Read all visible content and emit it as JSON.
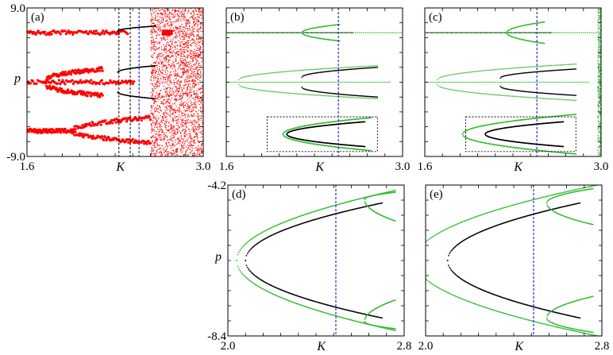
{
  "chart_data": [
    {
      "id": "a",
      "type": "scatter",
      "panel_label": "(a)",
      "xlabel": "K",
      "ylabel": "p",
      "xlim": [
        1.6,
        3.0
      ],
      "ylim": [
        -9.0,
        9.0
      ],
      "x_tick_labels": [
        "1.6",
        "3.0"
      ],
      "y_tick_labels": [
        "9.0",
        "-9.0"
      ],
      "colors": {
        "main": "#ff0000",
        "secondary": "#000000",
        "marker_line": "#0000cc"
      },
      "dashed_verticals": [
        {
          "x": 2.33,
          "color": "#000000"
        },
        {
          "x": 2.42,
          "color": "#000000"
        },
        {
          "x": 2.49,
          "color": "#0000cc"
        }
      ],
      "series": [
        {
          "name": "period-1 top",
          "color": "#ff0000",
          "segments": [
            [
              1.6,
              2.4,
              6.0,
              6.0
            ],
            [
              2.68,
              2.75,
              6.0,
              6.0
            ]
          ]
        },
        {
          "name": "centre band",
          "color": "#ff0000",
          "segments": [
            [
              1.6,
              2.45,
              0.0,
              0.0
            ]
          ]
        },
        {
          "name": "upper branch",
          "color": "#ff0000",
          "segments": [
            [
              1.75,
              2.2,
              0.3,
              1.6
            ]
          ]
        },
        {
          "name": "lower branch",
          "color": "#ff0000",
          "segments": [
            [
              1.75,
              2.2,
              -0.3,
              -1.6
            ]
          ]
        },
        {
          "name": "bottom fork upper",
          "color": "#ff0000",
          "segments": [
            [
              1.95,
              2.58,
              -5.9,
              -4.3
            ]
          ]
        },
        {
          "name": "bottom fork lower",
          "color": "#ff0000",
          "segments": [
            [
              1.95,
              2.58,
              -5.9,
              -7.3
            ]
          ]
        },
        {
          "name": "bottom stem",
          "color": "#ff0000",
          "segments": [
            [
              1.6,
              1.95,
              -5.9,
              -5.9
            ]
          ]
        },
        {
          "name": "black branches",
          "color": "#000000",
          "segments": [
            [
              2.32,
              2.62,
              6.2,
              6.8
            ],
            [
              2.32,
              2.62,
              1.2,
              2.0
            ],
            [
              2.32,
              2.62,
              -1.2,
              -2.0
            ]
          ]
        },
        {
          "name": "chaotic region",
          "color": "#ff0000",
          "region": [
            2.58,
            3.0,
            -9.0,
            9.0
          ]
        }
      ]
    },
    {
      "id": "b",
      "type": "scatter",
      "panel_label": "(b)",
      "xlabel": "K",
      "xlim": [
        1.6,
        3.0
      ],
      "ylim": [
        -9.0,
        9.0
      ],
      "x_tick_labels": [
        "1.6",
        "3.0"
      ],
      "colors": {
        "main": "#33bb33",
        "secondary": "#000000",
        "marker_line": "#0000cc"
      },
      "dashed_verticals": [
        {
          "x": 2.49,
          "color": "#0000cc"
        }
      ],
      "inset_box": {
        "k_range": [
          2.0,
          2.8
        ],
        "p_range": [
          -8.4,
          -4.2
        ]
      },
      "series": [
        {
          "name": "top line black",
          "color": "#000000",
          "segments": [
            [
              1.6,
              2.6,
              6.0,
              6.0
            ]
          ]
        },
        {
          "name": "top green",
          "color": "#33bb33",
          "segments": [
            [
              1.6,
              3.0,
              6.0,
              6.0
            ],
            [
              2.2,
              2.5,
              6.0,
              7.0
            ],
            [
              2.2,
              2.5,
              6.0,
              5.0
            ]
          ]
        },
        {
          "name": "centre lines",
          "color": "#33bb33",
          "segments": [
            [
              1.6,
              2.9,
              0.0,
              0.0
            ],
            [
              1.7,
              2.8,
              0.3,
              2.0
            ],
            [
              1.7,
              2.8,
              -0.3,
              -2.0
            ]
          ]
        },
        {
          "name": "centre black",
          "color": "#000000",
          "segments": [
            [
              2.2,
              2.8,
              0.6,
              1.8
            ],
            [
              2.2,
              2.8,
              -0.6,
              -1.8
            ]
          ]
        },
        {
          "name": "parabola black",
          "color": "#000000",
          "parabola": {
            "vertex": [
              2.08,
              -6.3
            ],
            "end_x": 2.7,
            "half_width": 1.5
          }
        },
        {
          "name": "parabola green",
          "color": "#33bb33",
          "parabola": {
            "vertex": [
              2.05,
              -6.3
            ],
            "end_x": 2.75,
            "half_width": 2.0
          }
        }
      ]
    },
    {
      "id": "c",
      "type": "scatter",
      "panel_label": "(c)",
      "xlabel": "K",
      "xlim": [
        1.6,
        3.0
      ],
      "ylim": [
        -9.0,
        9.0
      ],
      "x_tick_labels": [
        "1.6",
        "3.0"
      ],
      "colors": {
        "main": "#33bb33",
        "secondary": "#000000",
        "marker_line": "#0000cc"
      },
      "dashed_verticals": [
        {
          "x": 2.49,
          "color": "#0000cc"
        }
      ],
      "inset_box": {
        "k_range": [
          2.0,
          2.8
        ],
        "p_range": [
          -8.4,
          -4.2
        ]
      },
      "series": [
        {
          "name": "top line black",
          "color": "#000000",
          "segments": [
            [
              1.6,
              2.6,
              6.0,
              6.0
            ]
          ]
        },
        {
          "name": "top green",
          "color": "#33bb33",
          "segments": [
            [
              1.6,
              3.0,
              6.0,
              6.0
            ],
            [
              2.25,
              2.55,
              6.0,
              7.3
            ],
            [
              2.25,
              2.55,
              6.0,
              4.7
            ]
          ]
        },
        {
          "name": "centre lines",
          "color": "#33bb33",
          "segments": [
            [
              1.6,
              2.9,
              0.0,
              0.0
            ],
            [
              1.7,
              2.8,
              0.3,
              2.2
            ],
            [
              1.7,
              2.8,
              -0.3,
              -2.2
            ]
          ]
        },
        {
          "name": "centre black",
          "color": "#000000",
          "segments": [
            [
              2.2,
              2.8,
              0.5,
              1.6
            ],
            [
              2.2,
              2.8,
              -0.5,
              -1.6
            ]
          ]
        },
        {
          "name": "parabola black",
          "color": "#000000",
          "parabola": {
            "vertex": [
              2.08,
              -6.3
            ],
            "end_x": 2.7,
            "half_width": 1.5
          }
        },
        {
          "name": "parabola green",
          "color": "#33bb33",
          "parabola": {
            "vertex": [
              1.9,
              -6.3
            ],
            "end_x": 2.8,
            "half_width": 2.4
          }
        },
        {
          "name": "edge band",
          "color": "#33bb33",
          "region": [
            2.97,
            3.0,
            -9.0,
            9.0
          ]
        }
      ]
    },
    {
      "id": "d",
      "type": "scatter",
      "panel_label": "(d)",
      "xlabel": "K",
      "ylabel": "p",
      "xlim": [
        2.0,
        2.8
      ],
      "ylim": [
        -8.4,
        -4.2
      ],
      "x_tick_labels": [
        "2.0",
        "2.8"
      ],
      "y_tick_labels": [
        "-4.2",
        "-8.4"
      ],
      "colors": {
        "main": "#33bb33",
        "secondary": "#000000",
        "marker_line": "#0000cc"
      },
      "dashed_verticals": [
        {
          "x": 2.49,
          "color": "#0000cc"
        }
      ],
      "series": [
        {
          "name": "main parabola",
          "color": "#000000",
          "parabola": {
            "vertex": [
              2.08,
              -6.3
            ],
            "end_x": 2.7,
            "half_width": 1.6
          }
        },
        {
          "name": "green parabola",
          "color": "#33bb33",
          "parabola": {
            "vertex": [
              2.04,
              -6.3
            ],
            "end_x": 2.76,
            "half_width": 1.95
          }
        },
        {
          "name": "upper branches",
          "color": "#33bb33",
          "segments": [
            [
              2.62,
              2.76,
              -4.6,
              -4.4
            ],
            [
              2.62,
              2.76,
              -4.6,
              -5.2
            ]
          ]
        },
        {
          "name": "lower branches",
          "color": "#33bb33",
          "segments": [
            [
              2.62,
              2.76,
              -8.0,
              -8.2
            ],
            [
              2.62,
              2.76,
              -8.0,
              -7.4
            ]
          ]
        }
      ]
    },
    {
      "id": "e",
      "type": "scatter",
      "panel_label": "(e)",
      "xlabel": "K",
      "xlim": [
        2.0,
        2.8
      ],
      "ylim": [
        -8.4,
        -4.2
      ],
      "x_tick_labels": [
        "2.0",
        "2.8"
      ],
      "colors": {
        "main": "#33bb33",
        "secondary": "#000000",
        "marker_line": "#0000cc"
      },
      "dashed_verticals": [
        {
          "x": 2.49,
          "color": "#0000cc"
        }
      ],
      "series": [
        {
          "name": "main parabola",
          "color": "#000000",
          "parabola": {
            "vertex": [
              2.1,
              -6.3
            ],
            "end_x": 2.7,
            "half_width": 1.6
          }
        },
        {
          "name": "green parabola",
          "color": "#33bb33",
          "parabola": {
            "vertex": [
              1.95,
              -6.3
            ],
            "end_x": 2.78,
            "half_width": 2.1
          }
        },
        {
          "name": "upper branches",
          "color": "#33bb33",
          "segments": [
            [
              2.55,
              2.76,
              -4.7,
              -4.3
            ],
            [
              2.55,
              2.76,
              -4.7,
              -5.3
            ]
          ]
        },
        {
          "name": "lower branches",
          "color": "#33bb33",
          "segments": [
            [
              2.55,
              2.76,
              -7.9,
              -8.3
            ],
            [
              2.55,
              2.76,
              -7.9,
              -7.3
            ]
          ]
        }
      ]
    }
  ]
}
